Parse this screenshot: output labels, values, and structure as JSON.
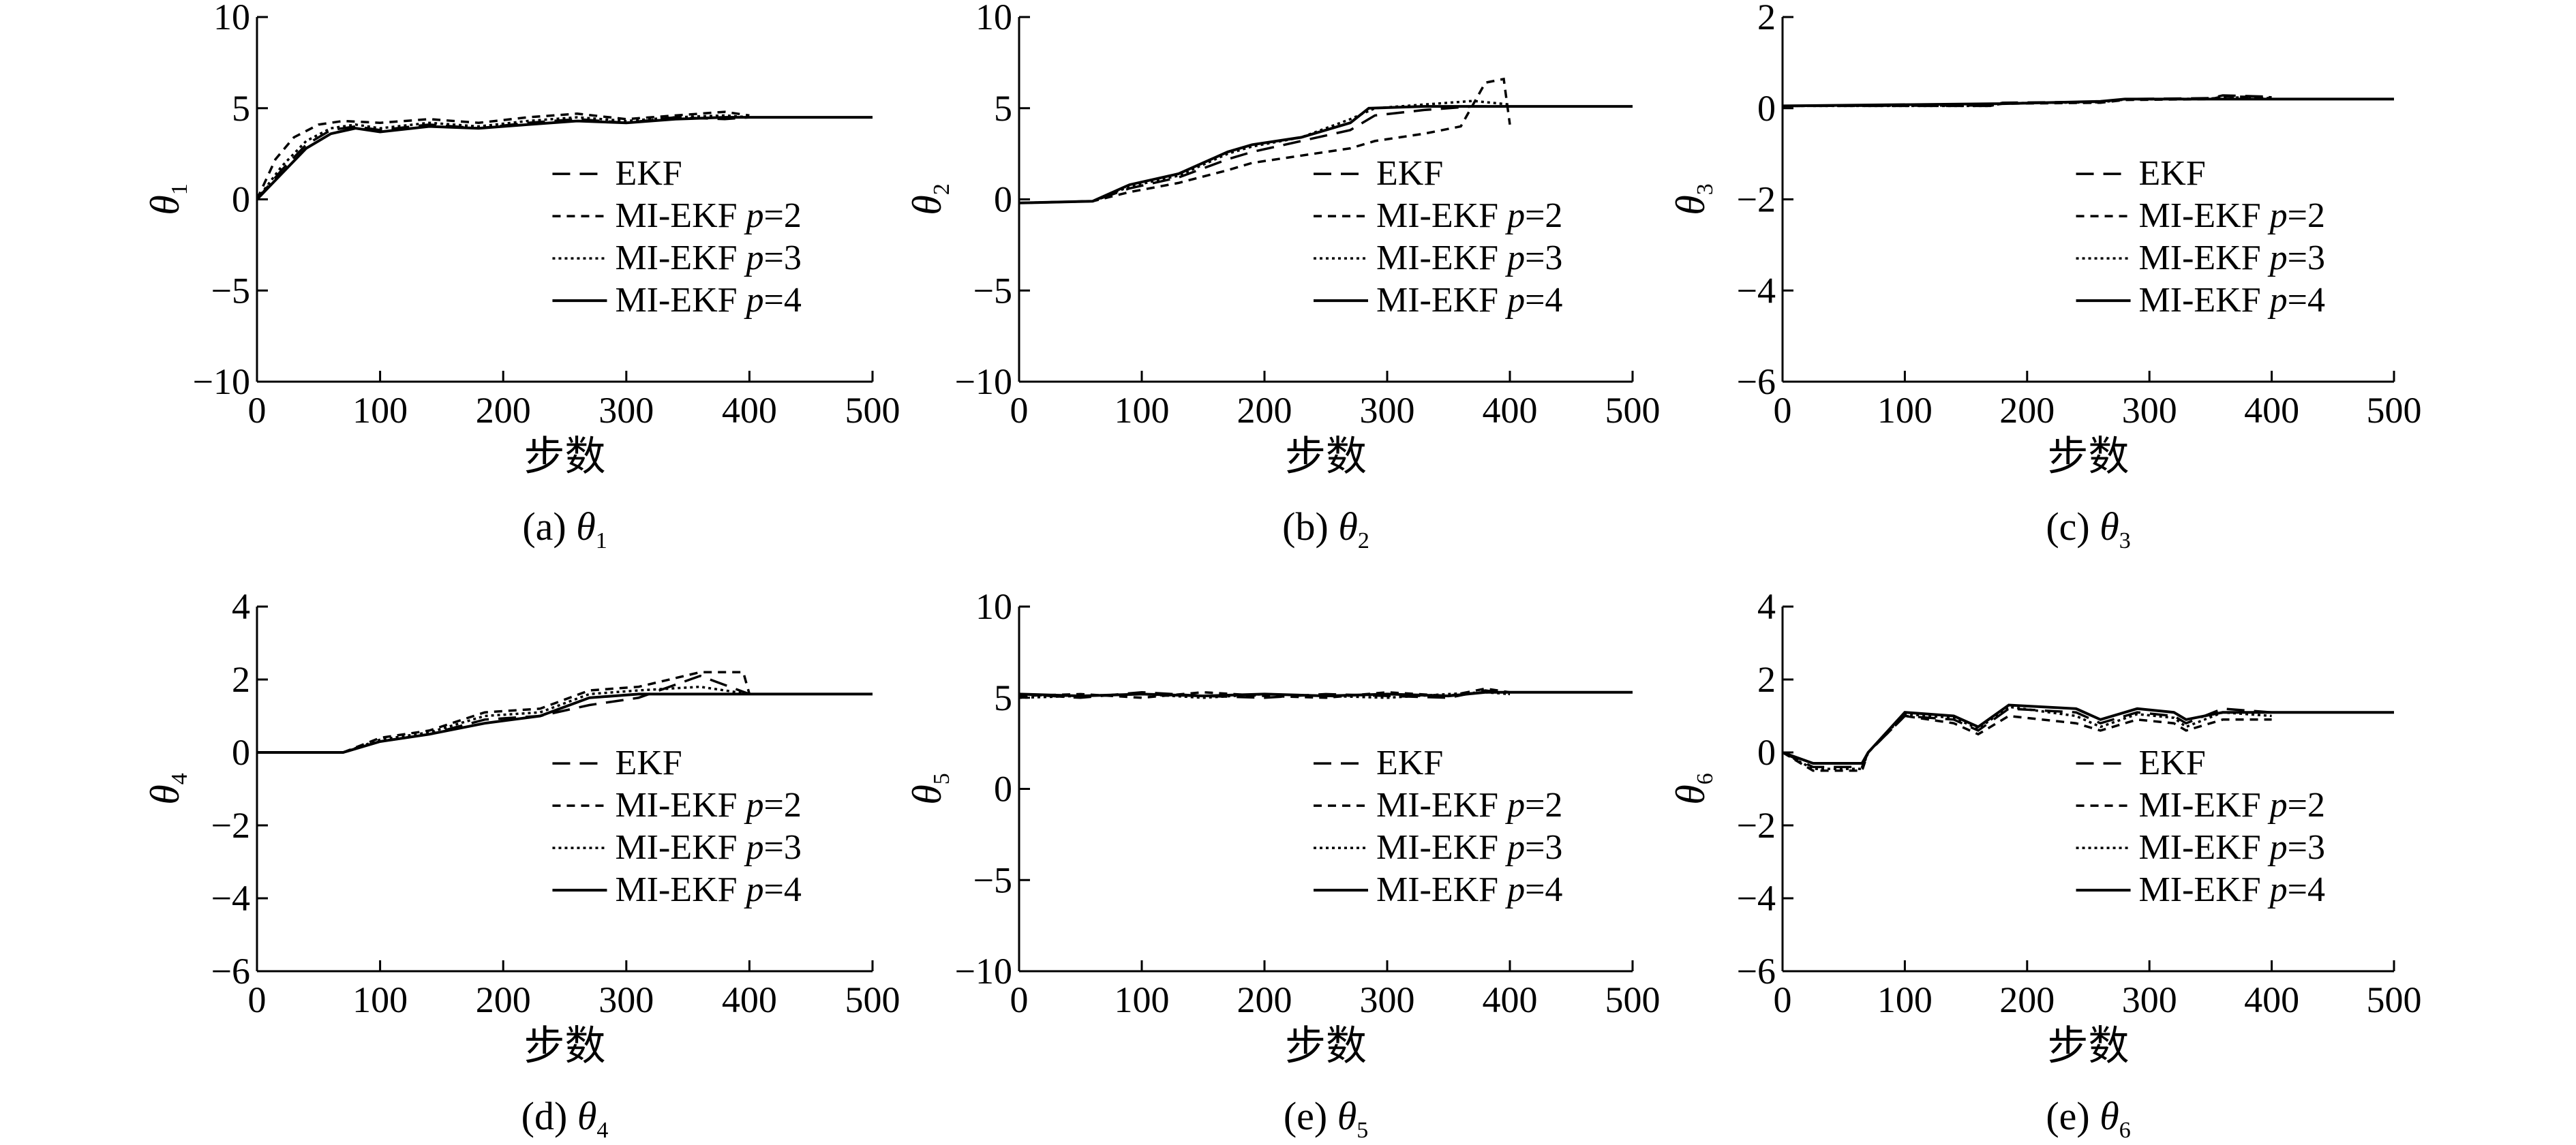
{
  "figure": {
    "charts": [
      {
        "id": "a",
        "caption_prefix": "(a) ",
        "caption_symbol": "θ",
        "caption_sub": "1",
        "ylabel_symbol": "θ",
        "ylabel_sub": "1",
        "xlabel": "步数"
      },
      {
        "id": "b",
        "caption_prefix": "(b) ",
        "caption_symbol": "θ",
        "caption_sub": "2",
        "ylabel_symbol": "θ",
        "ylabel_sub": "2",
        "xlabel": "步数"
      },
      {
        "id": "c",
        "caption_prefix": "(c) ",
        "caption_symbol": "θ",
        "caption_sub": "3",
        "ylabel_symbol": "θ",
        "ylabel_sub": "3",
        "xlabel": "步数"
      },
      {
        "id": "d",
        "caption_prefix": "(d) ",
        "caption_symbol": "θ",
        "caption_sub": "4",
        "ylabel_symbol": "θ",
        "ylabel_sub": "4",
        "xlabel": "步数"
      },
      {
        "id": "e",
        "caption_prefix": "(e) ",
        "caption_symbol": "θ",
        "caption_sub": "5",
        "ylabel_symbol": "θ",
        "ylabel_sub": "5",
        "xlabel": "步数"
      },
      {
        "id": "f",
        "caption_prefix": "(e) ",
        "caption_symbol": "θ",
        "caption_sub": "6",
        "ylabel_symbol": "θ",
        "ylabel_sub": "6",
        "xlabel": "步数"
      }
    ],
    "legend_entries": [
      {
        "name": "EKF",
        "prefix": "EKF",
        "italic": "",
        "suffix": "",
        "style": "dash-long"
      },
      {
        "name": "MI-EKF p=2",
        "prefix": "MI-EKF ",
        "italic": "p",
        "suffix": "=2",
        "style": "dash-short"
      },
      {
        "name": "MI-EKF p=3",
        "prefix": "MI-EKF ",
        "italic": "p",
        "suffix": "=3",
        "style": "dot"
      },
      {
        "name": "MI-EKF p=4",
        "prefix": "MI-EKF ",
        "italic": "p",
        "suffix": "=4",
        "style": "solid"
      }
    ],
    "line_color": "#000000"
  },
  "chart_data": [
    {
      "type": "line",
      "ylabel": "θ1",
      "xlabel": "步数",
      "xlim": [
        0,
        500
      ],
      "ylim": [
        -10,
        10
      ],
      "xticks": [
        0,
        100,
        200,
        300,
        400,
        500
      ],
      "yticks": [
        -10,
        -5,
        0,
        5,
        10
      ],
      "legend": "center-right",
      "series": [
        {
          "name": "EKF",
          "x": [
            0,
            20,
            40,
            60,
            80,
            100,
            140,
            180,
            220,
            260,
            300,
            340,
            380,
            400
          ],
          "y": [
            0,
            1.6,
            3.0,
            3.8,
            4.0,
            3.8,
            4.1,
            3.9,
            4.2,
            4.4,
            4.2,
            4.5,
            4.4,
            4.5
          ]
        },
        {
          "name": "MI-EKF p=2",
          "x": [
            0,
            15,
            30,
            50,
            70,
            100,
            140,
            180,
            220,
            260,
            300,
            340,
            380,
            400
          ],
          "y": [
            0,
            2.2,
            3.4,
            4.1,
            4.3,
            4.2,
            4.4,
            4.2,
            4.5,
            4.7,
            4.4,
            4.6,
            4.8,
            4.6
          ]
        },
        {
          "name": "MI-EKF p=3",
          "x": [
            0,
            20,
            40,
            60,
            80,
            100,
            140,
            180,
            220,
            260,
            300,
            340,
            380,
            400
          ],
          "y": [
            0,
            1.8,
            3.2,
            3.9,
            4.1,
            3.9,
            4.2,
            4.0,
            4.3,
            4.5,
            4.3,
            4.5,
            4.6,
            4.5
          ]
        },
        {
          "name": "MI-EKF p=4",
          "x": [
            0,
            20,
            40,
            60,
            80,
            100,
            140,
            180,
            220,
            260,
            300,
            340,
            380,
            400,
            500
          ],
          "y": [
            0,
            1.4,
            2.8,
            3.6,
            3.9,
            3.7,
            4.0,
            3.9,
            4.1,
            4.3,
            4.2,
            4.4,
            4.5,
            4.5,
            4.5
          ]
        }
      ]
    },
    {
      "type": "line",
      "ylabel": "θ2",
      "xlabel": "步数",
      "xlim": [
        0,
        500
      ],
      "ylim": [
        -10,
        10
      ],
      "xticks": [
        0,
        100,
        200,
        300,
        400,
        500
      ],
      "yticks": [
        -10,
        -5,
        0,
        5,
        10
      ],
      "legend": "center-right",
      "series": [
        {
          "name": "EKF",
          "x": [
            0,
            60,
            90,
            130,
            170,
            190,
            230,
            270,
            290,
            330,
            370,
            400
          ],
          "y": [
            -0.2,
            -0.1,
            0.6,
            1.2,
            2.2,
            2.6,
            3.2,
            3.8,
            4.6,
            4.9,
            5.1,
            5.1
          ]
        },
        {
          "name": "MI-EKF p=2",
          "x": [
            0,
            60,
            90,
            130,
            170,
            190,
            230,
            270,
            290,
            330,
            360,
            380,
            395,
            400
          ],
          "y": [
            -0.2,
            -0.1,
            0.4,
            0.9,
            1.6,
            2.0,
            2.4,
            2.8,
            3.2,
            3.6,
            4.0,
            6.4,
            6.6,
            4.1
          ]
        },
        {
          "name": "MI-EKF p=3",
          "x": [
            0,
            60,
            90,
            130,
            170,
            190,
            230,
            270,
            290,
            330,
            370,
            400
          ],
          "y": [
            -0.2,
            -0.1,
            0.7,
            1.3,
            2.5,
            2.9,
            3.4,
            4.4,
            5.0,
            5.2,
            5.4,
            5.2
          ]
        },
        {
          "name": "MI-EKF p=4",
          "x": [
            0,
            60,
            90,
            130,
            170,
            190,
            230,
            270,
            285,
            330,
            400,
            500
          ],
          "y": [
            -0.2,
            -0.1,
            0.8,
            1.4,
            2.6,
            3.0,
            3.4,
            4.2,
            5.0,
            5.1,
            5.1,
            5.1
          ]
        }
      ]
    },
    {
      "type": "line",
      "ylabel": "θ3",
      "xlabel": "步数",
      "xlim": [
        0,
        500
      ],
      "ylim": [
        -6,
        2
      ],
      "xticks": [
        0,
        100,
        200,
        300,
        400,
        500
      ],
      "yticks": [
        -6,
        -4,
        -2,
        0,
        2
      ],
      "legend": "center-right",
      "series": [
        {
          "name": "EKF",
          "x": [
            0,
            170,
            180,
            260,
            280,
            350,
            360,
            400
          ],
          "y": [
            0.05,
            0.05,
            0.12,
            0.14,
            0.2,
            0.22,
            0.28,
            0.25
          ]
        },
        {
          "name": "MI-EKF p=2",
          "x": [
            0,
            170,
            180,
            260,
            280,
            350,
            360,
            400
          ],
          "y": [
            0.05,
            0.06,
            0.1,
            0.12,
            0.18,
            0.2,
            0.26,
            0.24
          ]
        },
        {
          "name": "MI-EKF p=3",
          "x": [
            0,
            170,
            180,
            260,
            280,
            350,
            360,
            400
          ],
          "y": [
            0.05,
            0.05,
            0.11,
            0.13,
            0.19,
            0.21,
            0.24,
            0.22
          ]
        },
        {
          "name": "MI-EKF p=4",
          "x": [
            0,
            180,
            260,
            280,
            400,
            500
          ],
          "y": [
            0.05,
            0.1,
            0.15,
            0.2,
            0.2,
            0.2
          ]
        }
      ]
    },
    {
      "type": "line",
      "ylabel": "θ4",
      "xlabel": "步数",
      "xlim": [
        0,
        500
      ],
      "ylim": [
        -6,
        4
      ],
      "xticks": [
        0,
        100,
        200,
        300,
        400,
        500
      ],
      "yticks": [
        -6,
        -4,
        -2,
        0,
        2,
        4
      ],
      "legend": "center-right",
      "series": [
        {
          "name": "EKF",
          "x": [
            0,
            70,
            100,
            140,
            185,
            230,
            270,
            310,
            360,
            400
          ],
          "y": [
            0,
            0,
            0.3,
            0.5,
            0.9,
            1.0,
            1.3,
            1.5,
            2.1,
            1.6
          ]
        },
        {
          "name": "MI-EKF p=2",
          "x": [
            0,
            70,
            100,
            140,
            185,
            230,
            270,
            310,
            360,
            395,
            400
          ],
          "y": [
            0,
            0,
            0.4,
            0.6,
            1.1,
            1.2,
            1.7,
            1.8,
            2.2,
            2.2,
            1.6
          ]
        },
        {
          "name": "MI-EKF p=3",
          "x": [
            0,
            70,
            100,
            140,
            185,
            230,
            270,
            310,
            360,
            400
          ],
          "y": [
            0,
            0,
            0.35,
            0.55,
            1.0,
            1.1,
            1.6,
            1.7,
            1.8,
            1.6
          ]
        },
        {
          "name": "MI-EKF p=4",
          "x": [
            0,
            70,
            100,
            140,
            185,
            230,
            270,
            310,
            360,
            400,
            500
          ],
          "y": [
            0,
            0,
            0.3,
            0.5,
            0.8,
            1.0,
            1.5,
            1.6,
            1.6,
            1.6,
            1.6
          ]
        }
      ]
    },
    {
      "type": "line",
      "ylabel": "θ5",
      "xlabel": "步数",
      "xlim": [
        0,
        500
      ],
      "ylim": [
        -10,
        10
      ],
      "xticks": [
        0,
        100,
        200,
        300,
        400,
        500
      ],
      "yticks": [
        -10,
        -5,
        0,
        5,
        10
      ],
      "legend": "center-right",
      "series": [
        {
          "name": "EKF",
          "x": [
            0,
            50,
            100,
            150,
            200,
            250,
            300,
            350,
            380,
            400
          ],
          "y": [
            5.2,
            5.0,
            5.3,
            5.1,
            5.0,
            5.2,
            5.1,
            5.0,
            5.4,
            5.2
          ]
        },
        {
          "name": "MI-EKF p=2",
          "x": [
            0,
            50,
            100,
            150,
            200,
            250,
            300,
            350,
            380,
            400
          ],
          "y": [
            5.1,
            5.2,
            5.0,
            5.3,
            5.1,
            5.0,
            5.3,
            5.1,
            5.5,
            5.3
          ]
        },
        {
          "name": "MI-EKF p=3",
          "x": [
            0,
            50,
            100,
            150,
            200,
            250,
            300,
            350,
            380,
            400
          ],
          "y": [
            5.0,
            5.1,
            5.2,
            5.0,
            5.2,
            5.1,
            5.0,
            5.2,
            5.3,
            5.2
          ]
        },
        {
          "name": "MI-EKF p=4",
          "x": [
            0,
            50,
            100,
            150,
            200,
            250,
            300,
            350,
            380,
            400,
            500
          ],
          "y": [
            5.2,
            5.1,
            5.2,
            5.1,
            5.2,
            5.1,
            5.2,
            5.1,
            5.3,
            5.3,
            5.3
          ]
        }
      ]
    },
    {
      "type": "line",
      "ylabel": "θ6",
      "xlabel": "步数",
      "xlim": [
        0,
        500
      ],
      "ylim": [
        -6,
        4
      ],
      "xticks": [
        0,
        100,
        200,
        300,
        400,
        500
      ],
      "yticks": [
        -6,
        -4,
        -2,
        0,
        2,
        4
      ],
      "legend": "center-right",
      "series": [
        {
          "name": "EKF",
          "x": [
            0,
            25,
            65,
            70,
            100,
            140,
            160,
            185,
            240,
            260,
            290,
            320,
            330,
            360,
            400
          ],
          "y": [
            0,
            -0.4,
            -0.4,
            0,
            1.0,
            0.9,
            0.6,
            1.2,
            1.1,
            0.8,
            1.1,
            1.0,
            0.8,
            1.2,
            1.1
          ]
        },
        {
          "name": "MI-EKF p=2",
          "x": [
            0,
            25,
            65,
            70,
            100,
            140,
            160,
            185,
            240,
            260,
            290,
            320,
            330,
            360,
            400
          ],
          "y": [
            0,
            -0.5,
            -0.5,
            0,
            1.0,
            0.8,
            0.5,
            1.0,
            0.8,
            0.6,
            0.9,
            0.8,
            0.6,
            0.9,
            0.9
          ]
        },
        {
          "name": "MI-EKF p=3",
          "x": [
            0,
            25,
            65,
            70,
            100,
            140,
            160,
            185,
            240,
            260,
            290,
            320,
            330,
            360,
            400
          ],
          "y": [
            0,
            -0.45,
            -0.45,
            0,
            1.05,
            0.95,
            0.65,
            1.25,
            1.0,
            0.7,
            1.05,
            0.95,
            0.7,
            1.1,
            1.0
          ]
        },
        {
          "name": "MI-EKF p=4",
          "x": [
            0,
            25,
            65,
            70,
            100,
            140,
            160,
            185,
            240,
            260,
            290,
            320,
            330,
            360,
            400,
            500
          ],
          "y": [
            0,
            -0.3,
            -0.3,
            0,
            1.1,
            1.0,
            0.7,
            1.3,
            1.2,
            0.9,
            1.2,
            1.1,
            0.9,
            1.1,
            1.1,
            1.1
          ]
        }
      ]
    }
  ]
}
